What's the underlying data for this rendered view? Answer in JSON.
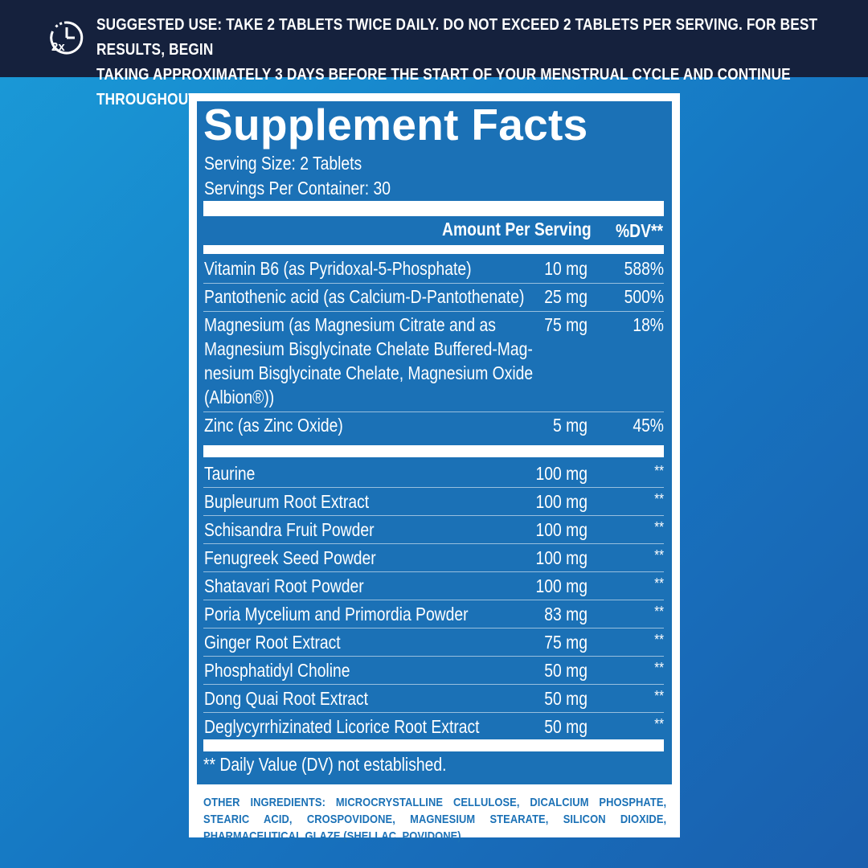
{
  "banner": {
    "icon": "2x-clock-icon",
    "icon_text": "2x",
    "line1": "SUGGESTED USE: TAKE 2 TABLETS TWICE DAILY. DO NOT EXCEED 2 TABLETS PER SERVING. FOR BEST RESULTS, BEGIN",
    "line2": "TAKING APPROXIMATELY 3 DAYS BEFORE THE START OF YOUR MENSTRUAL CYCLE AND CONTINUE THROUGHOUT."
  },
  "facts": {
    "title": "Supplement Facts",
    "serving_size": "Serving Size: 2 Tablets",
    "servings_per_container": "Servings Per Container: 30",
    "col_amount": "Amount Per Serving",
    "col_dv": "%DV**",
    "vitamins": [
      {
        "name": [
          "Vitamin B6 (as Pyridoxal-5-Phosphate)"
        ],
        "amount": "10 mg",
        "dv": "588%"
      },
      {
        "name": [
          "Pantothenic acid (as Calcium-D-Pantothenate)"
        ],
        "amount": "25 mg",
        "dv": "500%"
      },
      {
        "name": [
          "Magnesium (as Magnesium Citrate and as",
          "Magnesium Bisglycinate Chelate Buffered-Mag-",
          "nesium Bisglycinate Chelate, Magnesium Oxide",
          "(Albion®))"
        ],
        "amount": "75 mg",
        "dv": "18%"
      },
      {
        "name": [
          "Zinc (as Zinc Oxide)"
        ],
        "amount": "5 mg",
        "dv": "45%"
      }
    ],
    "blend": [
      {
        "name": "Taurine",
        "amount": "100 mg",
        "dv": "**"
      },
      {
        "name": "Bupleurum Root Extract",
        "amount": "100 mg",
        "dv": "**"
      },
      {
        "name": "Schisandra Fruit Powder",
        "amount": "100 mg",
        "dv": "**"
      },
      {
        "name": "Fenugreek Seed Powder",
        "amount": "100 mg",
        "dv": "**"
      },
      {
        "name": "Shatavari Root Powder",
        "amount": "100 mg",
        "dv": "**"
      },
      {
        "name": "Poria Mycelium and Primordia Powder",
        "amount": "83 mg",
        "dv": "**"
      },
      {
        "name": "Ginger Root Extract",
        "amount": "75 mg",
        "dv": "**"
      },
      {
        "name": "Phosphatidyl Choline",
        "amount": "50 mg",
        "dv": "**"
      },
      {
        "name": "Dong Quai Root Extract",
        "amount": "50 mg",
        "dv": "**"
      },
      {
        "name": "Deglycyrrhizinated Licorice Root Extract",
        "amount": "50 mg",
        "dv": "**"
      }
    ],
    "footnote": "** Daily Value (DV) not established."
  },
  "other_ingredients": "OTHER INGREDIENTS: MICROCRYSTALLINE CELLULOSE, DICALCIUM PHOSPHATE, STEARIC ACID, CROSPOVIDONE, MAGNESIUM STEARATE, SILICON DIOXIDE, PHARMACEUTICAL GLAZE (SHELLAC, POVIDONE).",
  "colors": {
    "banner_bg": "#15213d",
    "label_blue": "#1b71b6",
    "background_start": "#1a9bd8",
    "background_end": "#1a5fae"
  }
}
